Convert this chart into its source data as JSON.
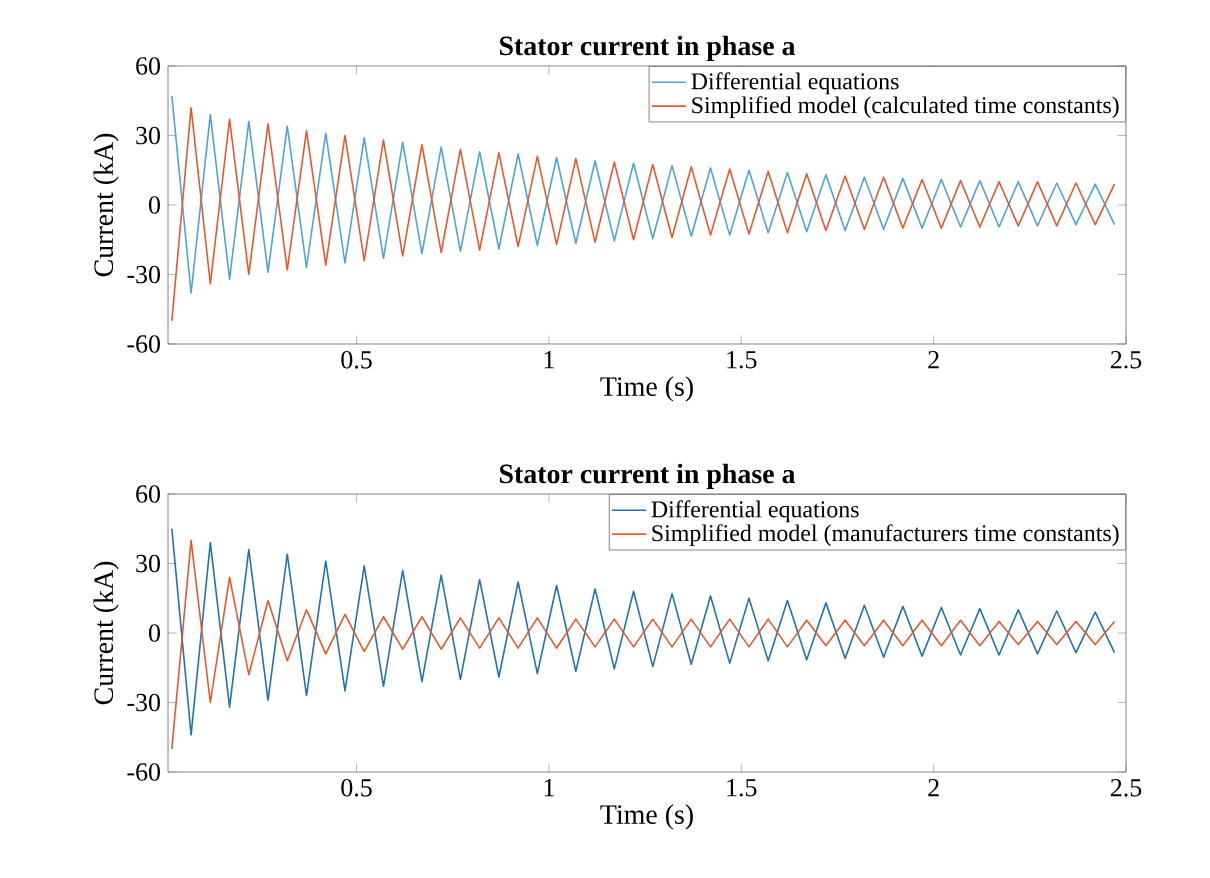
{
  "chart_data": [
    {
      "type": "line",
      "title": "Stator current in phase a",
      "xlabel": "Time (s)",
      "ylabel": "Current (kA)",
      "xlim": [
        0.01,
        2.5
      ],
      "ylim": [
        -60,
        60
      ],
      "xticks": [
        0.5,
        1,
        1.5,
        2,
        2.5
      ],
      "yticks": [
        -60,
        -30,
        0,
        30,
        60
      ],
      "legend": "top right",
      "grid": false,
      "x": [
        0.02,
        0.07,
        0.12,
        0.17,
        0.22,
        0.27,
        0.32,
        0.37,
        0.42,
        0.47,
        0.52,
        0.57,
        0.62,
        0.67,
        0.72,
        0.77,
        0.82,
        0.87,
        0.92,
        0.97,
        1.02,
        1.07,
        1.12,
        1.17,
        1.22,
        1.27,
        1.32,
        1.37,
        1.42,
        1.47,
        1.52,
        1.57,
        1.62,
        1.67,
        1.72,
        1.77,
        1.82,
        1.87,
        1.92,
        1.97,
        2.02,
        2.07,
        2.12,
        2.17,
        2.22,
        2.27,
        2.32,
        2.37,
        2.42,
        2.47
      ],
      "series": [
        {
          "name": "Differential equations",
          "color": "#4da3e0",
          "values": [
            47,
            -38,
            39,
            -32,
            36,
            -29,
            34,
            -27,
            31,
            -25,
            29,
            -23,
            27,
            -21,
            25,
            -20,
            23,
            -19,
            22,
            -17.5,
            20.5,
            -16.5,
            19,
            -15.5,
            18,
            -14.5,
            17,
            -13.5,
            16,
            -13,
            15,
            -12,
            14,
            -11.5,
            13,
            -11,
            12,
            -10.5,
            11.5,
            -10,
            11,
            -9.5,
            10.5,
            -9.5,
            10,
            -9,
            9.5,
            -8.5,
            9,
            -8.5
          ]
        },
        {
          "name": "Simplified model (calculated time constants)",
          "color": "#e8582a",
          "values": [
            -50,
            42,
            -34,
            37,
            -30,
            35,
            -28,
            32,
            -26,
            30,
            -24,
            28,
            -22,
            26,
            -20.5,
            24,
            -19.5,
            22.5,
            -18,
            21,
            -17,
            20,
            -16,
            18.5,
            -15,
            17.5,
            -14,
            16.5,
            -13,
            15.5,
            -12.5,
            14.5,
            -12,
            13.5,
            -11,
            12.5,
            -10.5,
            12,
            -10,
            11,
            -10,
            10.5,
            -9.5,
            10,
            -9,
            10,
            -9,
            9.5,
            -8.5,
            9
          ]
        }
      ]
    },
    {
      "type": "line",
      "title": "Stator current in phase a",
      "xlabel": "Time (s)",
      "ylabel": "Current (kA)",
      "xlim": [
        0.01,
        2.5
      ],
      "ylim": [
        -60,
        60
      ],
      "xticks": [
        0.5,
        1,
        1.5,
        2,
        2.5
      ],
      "yticks": [
        -60,
        -30,
        0,
        30,
        60
      ],
      "legend": "top right",
      "grid": false,
      "x": [
        0.02,
        0.07,
        0.12,
        0.17,
        0.22,
        0.27,
        0.32,
        0.37,
        0.42,
        0.47,
        0.52,
        0.57,
        0.62,
        0.67,
        0.72,
        0.77,
        0.82,
        0.87,
        0.92,
        0.97,
        1.02,
        1.07,
        1.12,
        1.17,
        1.22,
        1.27,
        1.32,
        1.37,
        1.42,
        1.47,
        1.52,
        1.57,
        1.62,
        1.67,
        1.72,
        1.77,
        1.82,
        1.87,
        1.92,
        1.97,
        2.02,
        2.07,
        2.12,
        2.17,
        2.22,
        2.27,
        2.32,
        2.37,
        2.42,
        2.47
      ],
      "series": [
        {
          "name": "Differential equations",
          "color": "#1f72b8",
          "values": [
            45,
            -44,
            39,
            -32,
            36,
            -29,
            34,
            -27,
            31,
            -25,
            29,
            -23,
            27,
            -21,
            25,
            -20,
            23,
            -19,
            22,
            -17.5,
            20.5,
            -16.5,
            19,
            -15.5,
            18,
            -14.5,
            17,
            -13.5,
            16,
            -13,
            15,
            -12,
            14,
            -11.5,
            13,
            -11,
            12,
            -10.5,
            11.5,
            -10,
            11,
            -9.5,
            10.5,
            -9.5,
            10,
            -9,
            9.5,
            -8.5,
            9,
            -8.5
          ]
        },
        {
          "name": "Simplified model (manufacturers time constants)",
          "color": "#e8582a",
          "values": [
            -50,
            40,
            -30,
            24,
            -18,
            14,
            -12,
            10,
            -9,
            8,
            -8,
            7,
            -7,
            7,
            -7,
            6.5,
            -6.5,
            6.5,
            -6.5,
            6.5,
            -6.5,
            6,
            -6,
            6,
            -6,
            6,
            -6,
            6,
            -6,
            6,
            -6,
            6,
            -6,
            5.5,
            -5.5,
            5.5,
            -5.5,
            5.5,
            -5.5,
            5.5,
            -5.5,
            5.5,
            -5.5,
            5,
            -5,
            5,
            -5,
            5,
            -5,
            5
          ]
        }
      ]
    }
  ]
}
